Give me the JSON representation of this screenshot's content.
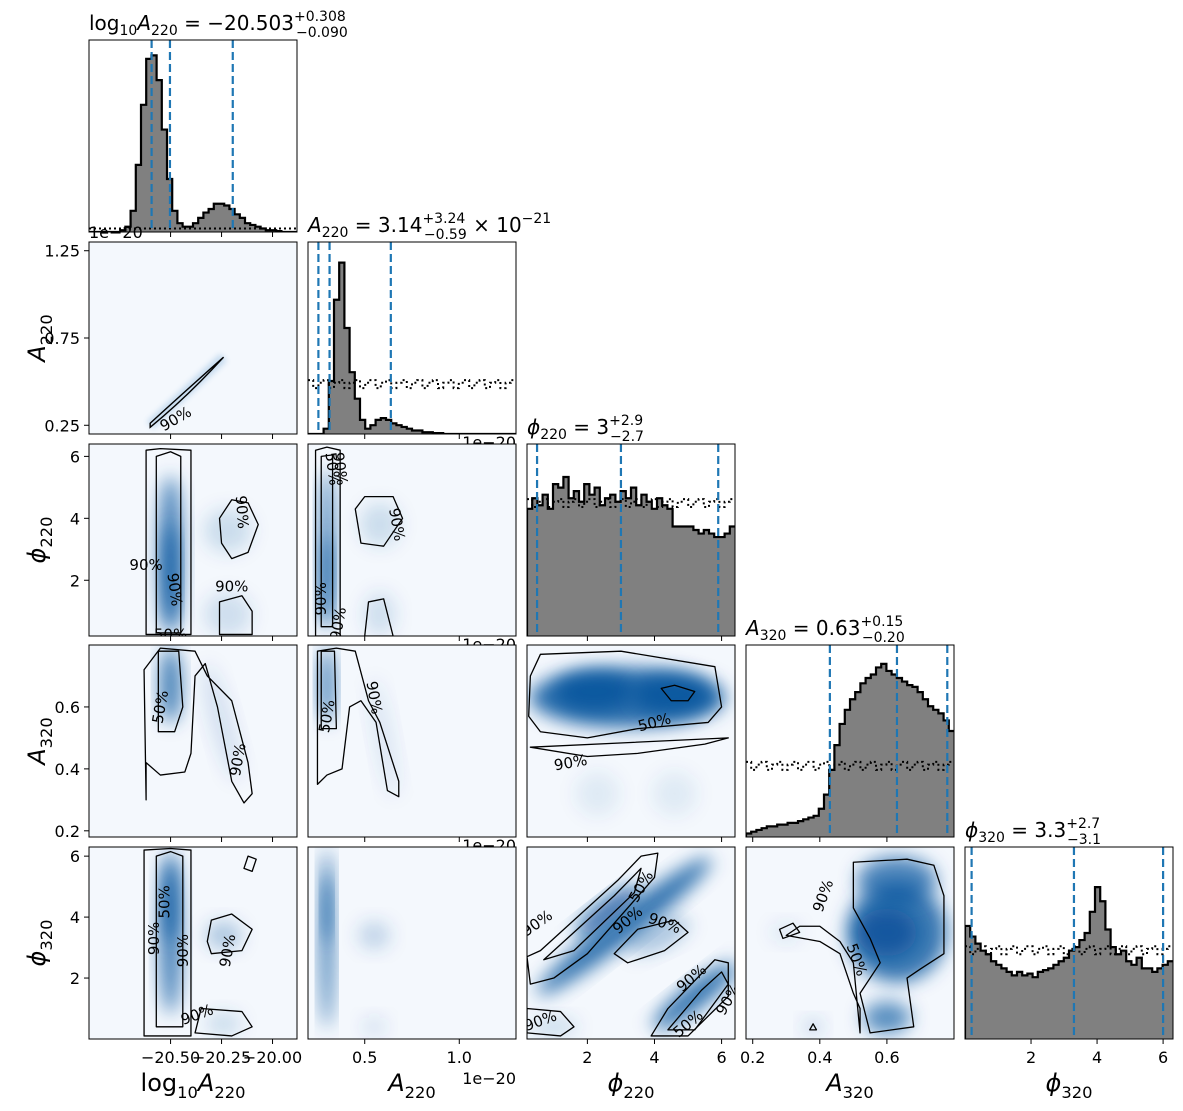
{
  "chart_data": {
    "type": "corner",
    "parameters": [
      {
        "key": "logA220",
        "label_base": "log",
        "label_sub": "10",
        "label_var": "A",
        "label_var_sub": "220",
        "range": [
          -20.9,
          -19.88
        ],
        "ticks": [
          -20.5,
          -20.25,
          -20.0
        ],
        "tick_labels": [
          "−20.50",
          "−20.25",
          "−20.00"
        ],
        "title": {
          "value": "−20.503",
          "plus": "+0.308",
          "minus": "−0.090",
          "suffix": ""
        },
        "quantiles": [
          -20.593,
          -20.503,
          -20.195
        ]
      },
      {
        "key": "A220",
        "label_base": "",
        "label_sub": "",
        "label_var": "A",
        "label_var_sub": "220",
        "range": [
          0.2,
          1.3
        ],
        "ticks": [
          0.25,
          0.75,
          1.25
        ],
        "tick_labels": [
          "0.25",
          "0.75",
          "1.25"
        ],
        "xticks": [
          0.5,
          1.0
        ],
        "xtick_labels": [
          "0.5",
          "1.0"
        ],
        "offset_text": "1e−20",
        "title": {
          "value": "3.14",
          "plus": "+3.24",
          "minus": "−0.59",
          "suffix": "× 10−21"
        },
        "quantiles": [
          0.255,
          0.314,
          0.638
        ]
      },
      {
        "key": "phi220",
        "label_base": "",
        "label_sub": "",
        "label_var": "ϕ",
        "label_var_sub": "220",
        "range": [
          0.2,
          6.4
        ],
        "ticks": [
          2,
          4,
          6
        ],
        "tick_labels": [
          "2",
          "4",
          "6"
        ],
        "title": {
          "value": "3",
          "plus": "+2.9",
          "minus": "−2.7",
          "suffix": ""
        },
        "quantiles": [
          0.5,
          3.0,
          5.9
        ]
      },
      {
        "key": "A320",
        "label_base": "",
        "label_sub": "",
        "label_var": "A",
        "label_var_sub": "320",
        "range": [
          0.18,
          0.8
        ],
        "ticks": [
          0.2,
          0.4,
          0.6
        ],
        "tick_labels": [
          "0.2",
          "0.4",
          "0.6"
        ],
        "title": {
          "value": "0.63",
          "plus": "+0.15",
          "minus": "−0.20",
          "suffix": ""
        },
        "quantiles": [
          0.43,
          0.63,
          0.78
        ]
      },
      {
        "key": "phi320",
        "label_base": "",
        "label_sub": "",
        "label_var": "ϕ",
        "label_var_sub": "320",
        "range": [
          0.0,
          6.3
        ],
        "ticks": [
          2,
          4,
          6
        ],
        "tick_labels": [
          "2",
          "4",
          "6"
        ],
        "title": {
          "value": "3.3",
          "plus": "+2.7",
          "minus": "−3.1",
          "suffix": ""
        },
        "quantiles": [
          0.2,
          3.3,
          6.0
        ]
      }
    ],
    "histograms": {
      "logA220": [
        0,
        0,
        0,
        0,
        0,
        0,
        0.01,
        0.03,
        0.12,
        0.38,
        0.72,
        0.98,
        1.0,
        0.86,
        0.58,
        0.3,
        0.12,
        0.05,
        0.03,
        0.03,
        0.05,
        0.08,
        0.11,
        0.13,
        0.16,
        0.16,
        0.15,
        0.13,
        0.1,
        0.08,
        0.05,
        0.04,
        0.03,
        0.02,
        0.01,
        0.01,
        0.005,
        0,
        0,
        0
      ],
      "A220": [
        0,
        0,
        0,
        0.03,
        0.3,
        0.76,
        0.97,
        0.6,
        0.35,
        0.2,
        0.08,
        0.03,
        0.05,
        0.08,
        0.09,
        0.08,
        0.06,
        0.05,
        0.04,
        0.03,
        0.02,
        0.02,
        0.01,
        0.01,
        0.005,
        0.005,
        0,
        0,
        0,
        0,
        0,
        0,
        0,
        0,
        0,
        0,
        0,
        0,
        0,
        0
      ],
      "phi220": [
        0.72,
        0.78,
        0.74,
        0.8,
        0.72,
        0.86,
        0.84,
        0.9,
        0.78,
        0.82,
        0.76,
        0.86,
        0.8,
        0.84,
        0.74,
        0.78,
        0.8,
        0.76,
        0.82,
        0.78,
        0.84,
        0.74,
        0.8,
        0.76,
        0.72,
        0.78,
        0.74,
        0.72,
        0.62,
        0.62,
        0.62,
        0.62,
        0.6,
        0.58,
        0.6,
        0.58,
        0.56,
        0.56,
        0.58,
        0.62
      ],
      "A320": [
        0.02,
        0.03,
        0.04,
        0.05,
        0.06,
        0.06,
        0.07,
        0.07,
        0.08,
        0.08,
        0.09,
        0.1,
        0.11,
        0.12,
        0.16,
        0.24,
        0.38,
        0.52,
        0.64,
        0.72,
        0.78,
        0.82,
        0.87,
        0.9,
        0.92,
        0.96,
        0.98,
        0.94,
        0.92,
        0.9,
        0.88,
        0.86,
        0.85,
        0.82,
        0.78,
        0.74,
        0.72,
        0.7,
        0.66,
        0.6
      ],
      "phi320": [
        0.64,
        0.58,
        0.54,
        0.5,
        0.48,
        0.44,
        0.42,
        0.4,
        0.38,
        0.36,
        0.38,
        0.36,
        0.37,
        0.35,
        0.38,
        0.39,
        0.4,
        0.42,
        0.44,
        0.46,
        0.5,
        0.52,
        0.56,
        0.6,
        0.72,
        0.86,
        0.78,
        0.62,
        0.52,
        0.48,
        0.5,
        0.44,
        0.42,
        0.46,
        0.4,
        0.4,
        0.38,
        0.4,
        0.42,
        0.44
      ]
    },
    "prior_levels": {
      "logA220": 0.02,
      "A220": 0.28,
      "phi220": 0.75,
      "A320": 0.4,
      "phi320": 0.5
    },
    "contour_labels": [
      "50%",
      "90%"
    ]
  }
}
